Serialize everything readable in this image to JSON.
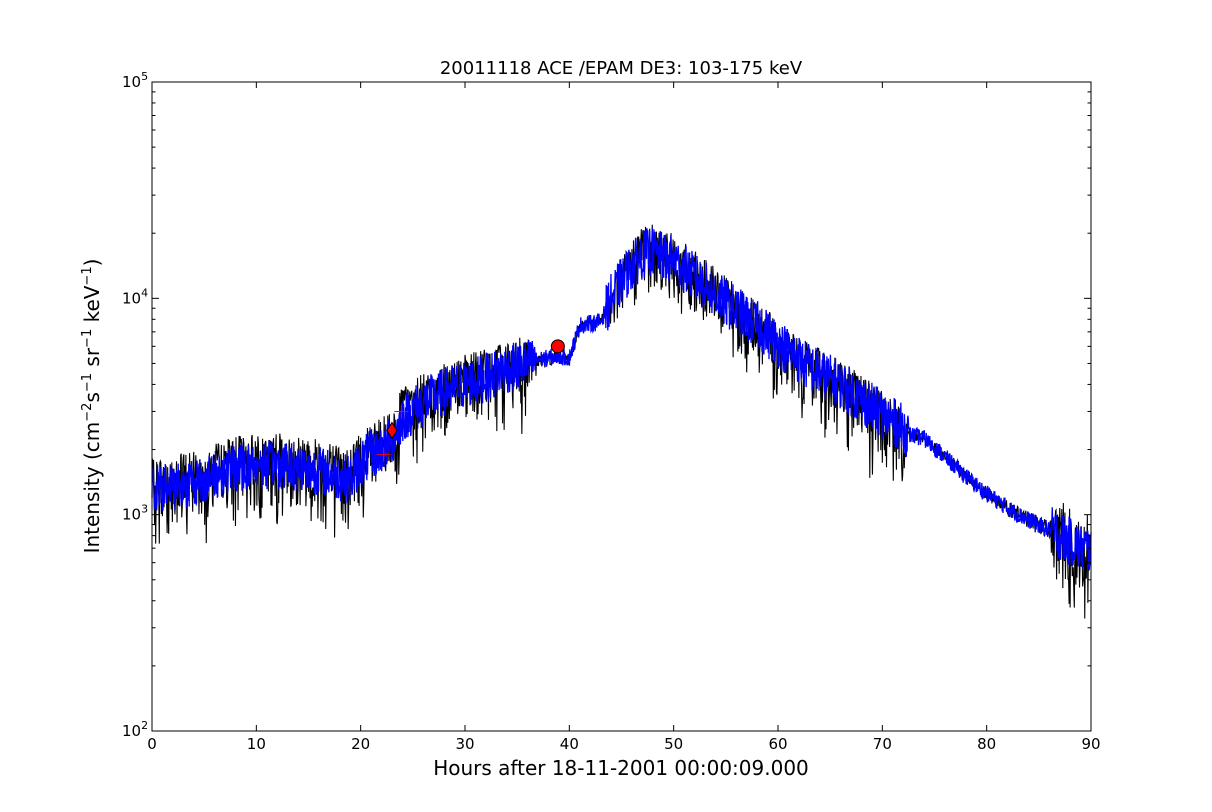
{
  "chart_data": {
    "type": "line",
    "title": "20011118 ACE /EPAM DE3: 103-175 keV",
    "xlabel": "Hours after 18-11-2001 00:00:09.000",
    "ylabel": {
      "prefix": "Intensity (cm",
      "exp1": "−2",
      "mid1": "s",
      "exp2": "−1",
      "mid2": " sr",
      "exp3": "−1",
      "mid3": " keV",
      "exp4": "−1",
      "suffix": ")"
    },
    "xlim": [
      0,
      90
    ],
    "ylim": [
      100,
      100000
    ],
    "yscale": "log",
    "grid": false,
    "xticks": [
      {
        "value": 0,
        "label": "0"
      },
      {
        "value": 10,
        "label": "10"
      },
      {
        "value": 20,
        "label": "20"
      },
      {
        "value": 30,
        "label": "30"
      },
      {
        "value": 40,
        "label": "40"
      },
      {
        "value": 50,
        "label": "50"
      },
      {
        "value": 60,
        "label": "60"
      },
      {
        "value": 70,
        "label": "70"
      },
      {
        "value": 80,
        "label": "80"
      },
      {
        "value": 90,
        "label": "90"
      }
    ],
    "yticks": [
      {
        "value": 100,
        "base": "10",
        "exp": "2"
      },
      {
        "value": 1000,
        "base": "10",
        "exp": "3"
      },
      {
        "value": 10000,
        "base": "10",
        "exp": "4"
      },
      {
        "value": 100000,
        "base": "10",
        "exp": "5"
      }
    ],
    "series": [
      {
        "color": "#000000",
        "style": "noisy-envelope",
        "points": [
          [
            0,
            1300
          ],
          [
            2,
            1350
          ],
          [
            5,
            1450
          ],
          [
            8,
            1650
          ],
          [
            10,
            1700
          ],
          [
            13,
            1700
          ],
          [
            16,
            1600
          ],
          [
            19,
            1450
          ],
          [
            20,
            1750
          ],
          [
            21,
            1900
          ],
          [
            22,
            2000
          ],
          [
            23,
            2200
          ],
          [
            24,
            2800
          ],
          [
            26,
            3300
          ],
          [
            28,
            3700
          ],
          [
            30,
            4000
          ],
          [
            32,
            4300
          ],
          [
            34,
            4700
          ],
          [
            36,
            5000
          ],
          [
            37,
            5200
          ],
          [
            39,
            5400
          ],
          [
            40,
            5300
          ],
          [
            41,
            7500
          ],
          [
            43,
            7800
          ],
          [
            44,
            10000
          ],
          [
            45,
            12000
          ],
          [
            46,
            14000
          ],
          [
            47,
            16000
          ],
          [
            48,
            16500
          ],
          [
            49,
            15500
          ],
          [
            50,
            15000
          ],
          [
            52,
            12500
          ],
          [
            55,
            9500
          ],
          [
            58,
            7500
          ],
          [
            60,
            6200
          ],
          [
            63,
            4800
          ],
          [
            66,
            4000
          ],
          [
            68,
            3400
          ],
          [
            70,
            2900
          ],
          [
            72,
            2500
          ],
          [
            72.5,
            2350
          ],
          [
            74,
            2250
          ],
          [
            76,
            1850
          ],
          [
            78,
            1500
          ],
          [
            80,
            1250
          ],
          [
            83,
            1000
          ],
          [
            86,
            850
          ],
          [
            87,
            800
          ],
          [
            88,
            750
          ],
          [
            89,
            700
          ],
          [
            90,
            700
          ]
        ],
        "lower_factor": [
          [
            0,
            0.5
          ],
          [
            20,
            0.5
          ],
          [
            21,
            0.55
          ],
          [
            36,
            0.45
          ],
          [
            37,
            0.9
          ],
          [
            40,
            0.9
          ],
          [
            41,
            0.95
          ],
          [
            43,
            0.95
          ],
          [
            44,
            0.75
          ],
          [
            46,
            0.55
          ],
          [
            47,
            0.6
          ],
          [
            50,
            0.55
          ],
          [
            60,
            0.45
          ],
          [
            70,
            0.45
          ],
          [
            72,
            0.45
          ],
          [
            72.5,
            0.95
          ],
          [
            86,
            0.9
          ],
          [
            86.5,
            0.45
          ],
          [
            90,
            0.45
          ]
        ],
        "upper_factor": [
          [
            0,
            1.4
          ],
          [
            20,
            1.4
          ],
          [
            36,
            1.35
          ],
          [
            37,
            1.05
          ],
          [
            40,
            1.05
          ],
          [
            41,
            1.05
          ],
          [
            43,
            1.05
          ],
          [
            44,
            1.15
          ],
          [
            46,
            1.35
          ],
          [
            50,
            1.35
          ],
          [
            60,
            1.3
          ],
          [
            72,
            1.3
          ],
          [
            72.5,
            1.05
          ],
          [
            86,
            1.1
          ],
          [
            86.5,
            1.45
          ],
          [
            90,
            1.45
          ]
        ]
      },
      {
        "color": "#0000ff",
        "style": "noisy-mean",
        "points": [
          [
            0,
            1300
          ],
          [
            2,
            1350
          ],
          [
            5,
            1450
          ],
          [
            8,
            1650
          ],
          [
            10,
            1700
          ],
          [
            13,
            1700
          ],
          [
            16,
            1600
          ],
          [
            19,
            1450
          ],
          [
            20,
            1750
          ],
          [
            21,
            1900
          ],
          [
            22,
            2000
          ],
          [
            23,
            2200
          ],
          [
            24,
            2800
          ],
          [
            26,
            3300
          ],
          [
            28,
            3700
          ],
          [
            30,
            4000
          ],
          [
            32,
            4300
          ],
          [
            34,
            4700
          ],
          [
            36,
            5000
          ],
          [
            37,
            5200
          ],
          [
            39,
            5400
          ],
          [
            40,
            5300
          ],
          [
            41,
            7500
          ],
          [
            43,
            7800
          ],
          [
            44,
            10000
          ],
          [
            45,
            12000
          ],
          [
            46,
            14000
          ],
          [
            47,
            16000
          ],
          [
            48,
            16500
          ],
          [
            49,
            15500
          ],
          [
            50,
            15000
          ],
          [
            52,
            12500
          ],
          [
            55,
            9500
          ],
          [
            58,
            7500
          ],
          [
            60,
            6200
          ],
          [
            63,
            4800
          ],
          [
            66,
            4000
          ],
          [
            68,
            3400
          ],
          [
            70,
            2900
          ],
          [
            72,
            2500
          ],
          [
            72.5,
            2350
          ],
          [
            74,
            2250
          ],
          [
            76,
            1850
          ],
          [
            78,
            1500
          ],
          [
            80,
            1250
          ],
          [
            83,
            1000
          ],
          [
            86,
            850
          ],
          [
            87,
            800
          ],
          [
            88,
            750
          ],
          [
            89,
            700
          ],
          [
            90,
            700
          ]
        ],
        "spread": 0.12
      }
    ],
    "markers": [
      {
        "x": 38.9,
        "y": 6000,
        "shape": "circle",
        "color": "#ff0000"
      },
      {
        "x": 23.0,
        "y": 2450,
        "shape": "diamond",
        "color": "#ff0000"
      },
      {
        "x": 22.2,
        "y": 1900,
        "shape": "plus",
        "color": "#ff0000"
      },
      {
        "x": 23.9,
        "y": 3000,
        "shape": "plus",
        "color": "#ff0000"
      }
    ]
  }
}
